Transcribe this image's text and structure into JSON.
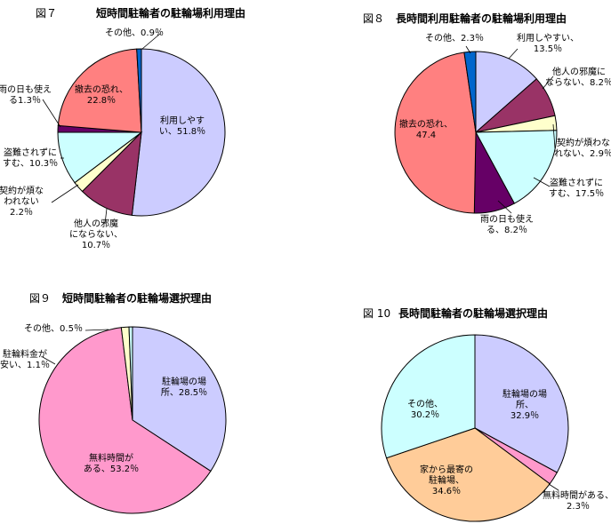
{
  "chart_data": [
    {
      "type": "pie",
      "figure_label": "図７",
      "title": "短時間駐輪者の駐輪場利用理由",
      "slices": [
        {
          "label": "利用しやすい",
          "value": 51.8,
          "text": [
            "利用しやす",
            "い、51.8％"
          ],
          "color": "#ccccff"
        },
        {
          "label": "他人の邪魔にならない",
          "value": 10.7,
          "text": [
            "他人の邪魔",
            "にならない、",
            "10.7％"
          ],
          "color": "#993366"
        },
        {
          "label": "契約が煩わされない",
          "value": 2.2,
          "text": [
            "契約が煩な",
            "われない",
            "2.2％"
          ],
          "color": "#ffffcc"
        },
        {
          "label": "盗難されずにすむ",
          "value": 10.3,
          "text": [
            "盗難されずに",
            "すむ、10.3％"
          ],
          "color": "#ccffff"
        },
        {
          "label": "雨の日も使える",
          "value": 1.3,
          "text": [
            "雨の日も使え",
            "る1.3％"
          ],
          "color": "#660066"
        },
        {
          "label": "撤去の恐れ",
          "value": 22.8,
          "text": [
            "撤去の恐れ、",
            "22.8％"
          ],
          "color": "#ff8080"
        },
        {
          "label": "その他",
          "value": 0.9,
          "text": [
            "その他、0.9％"
          ],
          "color": "#0066cc"
        }
      ]
    },
    {
      "type": "pie",
      "figure_label": "図８",
      "title": "長時間利用駐輪者の駐輪場利用理由",
      "slices": [
        {
          "label": "利用しやすい",
          "value": 13.5,
          "text": [
            "利用しやすい、",
            "13.5％"
          ],
          "color": "#ccccff"
        },
        {
          "label": "他人の邪魔にならない",
          "value": 8.2,
          "text": [
            "他人の邪魔に",
            "ならない、8.2％"
          ],
          "color": "#993366"
        },
        {
          "label": "契約が煩わされない",
          "value": 2.9,
          "text": [
            "契約が煩わな",
            "れない、2.9％"
          ],
          "color": "#ffffcc"
        },
        {
          "label": "盗難されずにすむ",
          "value": 17.5,
          "text": [
            "盗難されずに",
            "すむ、17.5％"
          ],
          "color": "#ccffff"
        },
        {
          "label": "雨の日も使える",
          "value": 8.2,
          "text": [
            "雨の日も使え",
            "る、8.2％"
          ],
          "color": "#660066"
        },
        {
          "label": "撤去の恐れ",
          "value": 47.4,
          "text": [
            "撤去の恐れ、",
            "47.4"
          ],
          "color": "#ff8080"
        },
        {
          "label": "その他",
          "value": 2.3,
          "text": [
            "その他、2.3％"
          ],
          "color": "#0066cc"
        }
      ]
    },
    {
      "type": "pie",
      "figure_label": "図９",
      "title": "短時間駐輪者の駐輪場選択理由",
      "slices": [
        {
          "label": "駐輪場の場所",
          "value": 28.5,
          "text": [
            "駐輪場の場",
            "所、28.5％"
          ],
          "color": "#ccccff"
        },
        {
          "label": "無料時間がある",
          "value": 53.2,
          "text": [
            "無料時間が",
            "ある、53.2％"
          ],
          "color": "#ff99cc"
        },
        {
          "label": "駐輪料金が安い",
          "value": 1.1,
          "text": [
            "駐輪料金が",
            "安い、1.1％"
          ],
          "color": "#ffffcc"
        },
        {
          "label": "その他",
          "value": 0.5,
          "text": [
            "その他、0.5％"
          ],
          "color": "#ccffff"
        }
      ]
    },
    {
      "type": "pie",
      "figure_label": "図 10",
      "title": "長時間駐輪者の駐輪場選択理由",
      "slices": [
        {
          "label": "駐輪場の場所",
          "value": 32.9,
          "text": [
            "駐輪場の場",
            "所、",
            "32.9％"
          ],
          "color": "#ccccff"
        },
        {
          "label": "無料時間がある",
          "value": 2.3,
          "text": [
            "無料時間がある、",
            "2.3％"
          ],
          "color": "#ff99cc"
        },
        {
          "label": "家から最寄の駐輪場",
          "value": 34.6,
          "text": [
            "家から最寄の",
            "駐輪場、",
            "34.6％"
          ],
          "color": "#ffcc99"
        },
        {
          "label": "その他",
          "value": 30.2,
          "text": [
            "その他、",
            "30.2％"
          ],
          "color": "#ccffff"
        }
      ]
    }
  ]
}
